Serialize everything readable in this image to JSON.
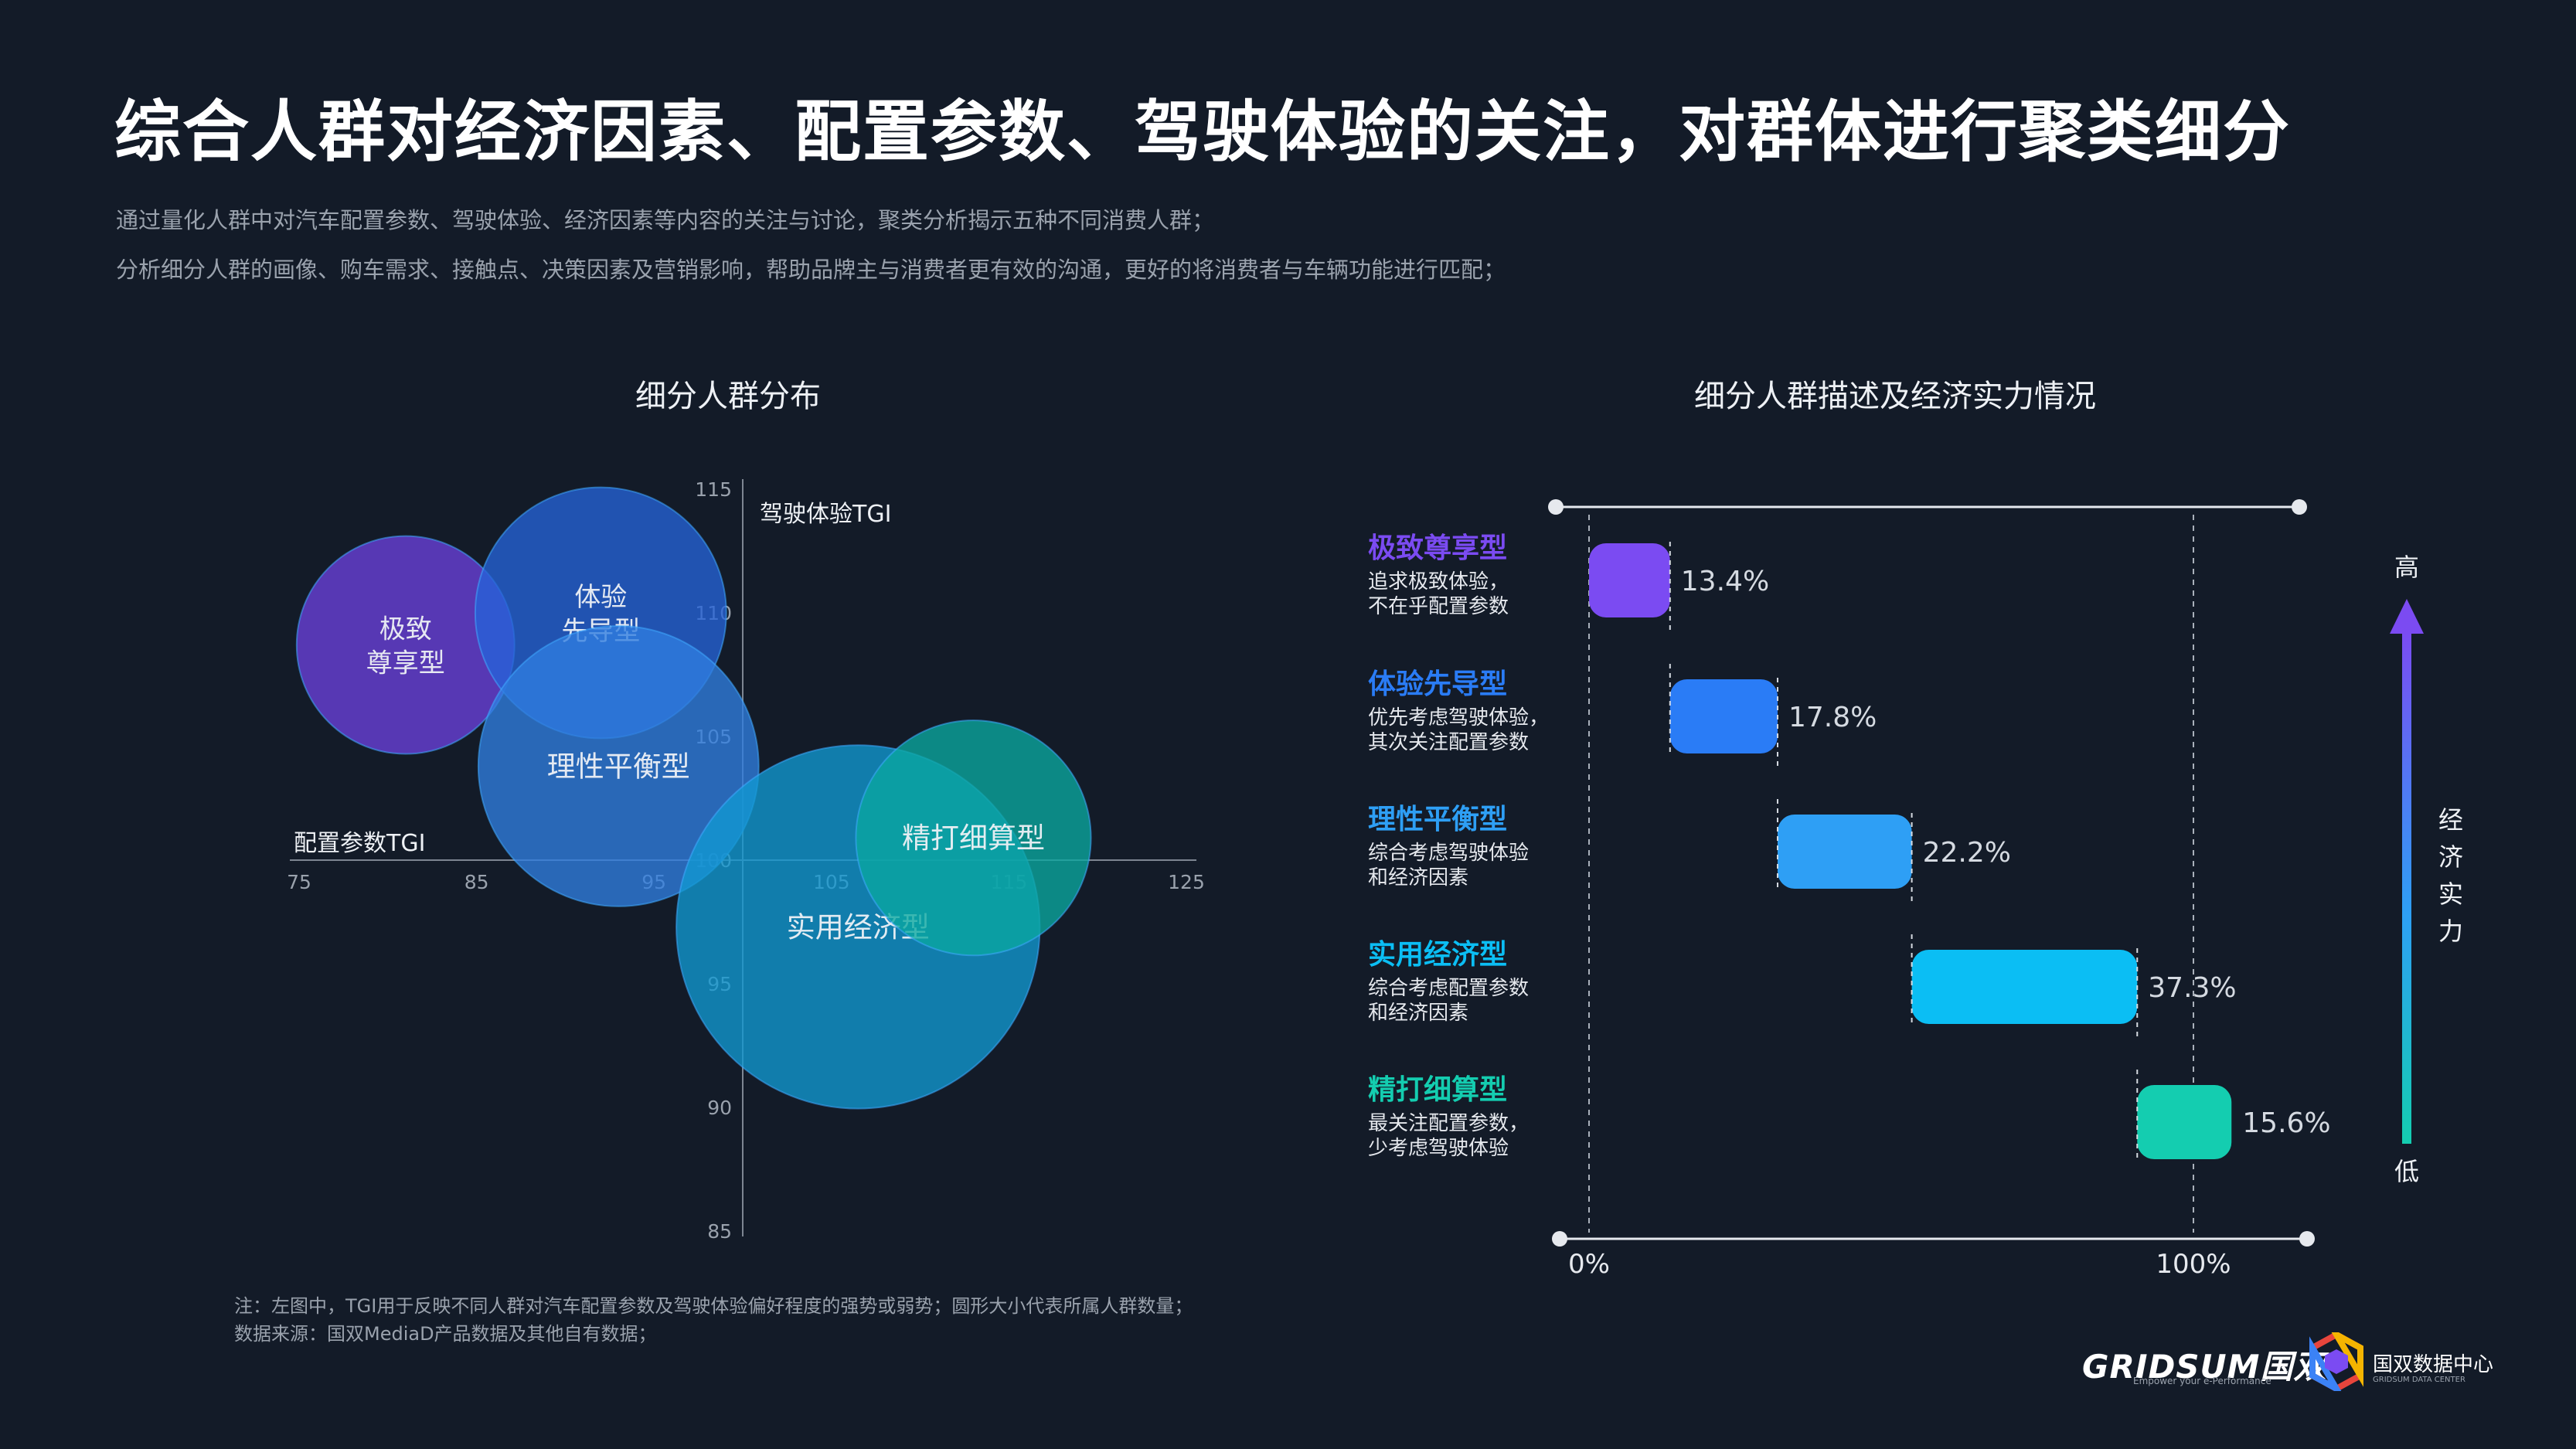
{
  "title": "综合人群对经济因素、配置参数、驾驶体验的关注，对群体进行聚类细分",
  "description": [
    "通过量化人群中对汽车配置参数、驾驶体验、经济因素等内容的关注与讨论，聚类分析揭示五种不同消费人群；",
    "分析细分人群的画像、购车需求、接触点、决策因素及营销影响，帮助品牌主与消费者更有效的沟通，更好的将消费者与车辆功能进行匹配；"
  ],
  "chart_data": [
    {
      "type": "scatter",
      "title": "细分人群分布",
      "xlabel": "配置参数TGI",
      "ylabel": "驾驶体验TGI",
      "xlim": [
        75,
        125
      ],
      "ylim": [
        85,
        115
      ],
      "x_ticks": [
        "75",
        "85",
        "95",
        "105",
        "115",
        "125"
      ],
      "y_ticks": [
        "85",
        "90",
        "95",
        "100",
        "105",
        "110",
        "115"
      ],
      "bubbles": [
        {
          "name": "极致尊享型",
          "lines": [
            "极致",
            "尊享型"
          ],
          "x": 81,
          "y": 108.7,
          "size": 13.4,
          "color": "#6a40dd"
        },
        {
          "name": "体验先导型",
          "lines": [
            "体验",
            "先导型"
          ],
          "x": 92,
          "y": 110,
          "size": 17.8,
          "color": "#2563d8"
        },
        {
          "name": "理性平衡型",
          "lines": [
            "理性平衡型"
          ],
          "x": 93,
          "y": 103.8,
          "size": 22.2,
          "color": "#2f7ee0"
        },
        {
          "name": "实用经济型",
          "lines": [
            "实用经济型"
          ],
          "x": 106.5,
          "y": 97.3,
          "size": 37.3,
          "color": "#1199d2"
        },
        {
          "name": "精打细算型",
          "lines": [
            "精打细算型"
          ],
          "x": 113,
          "y": 100.9,
          "size": 15.6,
          "color": "#0aa8a0"
        }
      ]
    },
    {
      "type": "bar",
      "title": "细分人群描述及经济实力情况",
      "x_ticks": [
        "0%",
        "100%"
      ],
      "axis_label": [
        "经",
        "济",
        "实",
        "力"
      ],
      "axis_high": "高",
      "axis_low": "低",
      "segments": [
        {
          "name": "极致尊享型",
          "desc": "追求极致体验，\n不在乎配置参数",
          "value": 13.4,
          "label": "13.4%",
          "color": "#7b4bf2"
        },
        {
          "name": "体验先导型",
          "desc": "优先考虑驾驶体验，\n其次关注配置参数",
          "value": 17.8,
          "label": "17.8%",
          "color": "#2a7cf6"
        },
        {
          "name": "理性平衡型",
          "desc": "综合考虑驾驶体验\n和经济因素",
          "value": 22.2,
          "label": "22.2%",
          "color": "#2e9ff5"
        },
        {
          "name": "实用经济型",
          "desc": "综合考虑配置参数\n和经济因素",
          "value": 37.3,
          "label": "37.3%",
          "color": "#0bbef4"
        },
        {
          "name": "精打细算型",
          "desc": "最关注配置参数，\n少考虑驾驶体验",
          "value": 15.6,
          "label": "15.6%",
          "color": "#14cdb0"
        }
      ]
    }
  ],
  "notes": [
    "注：左图中，TGI用于反映不同人群对汽车配置参数及驾驶体验偏好程度的强势或弱势；圆形大小代表所属人群数量；",
    "数据来源：国双MediaD产品数据及其他自有数据；"
  ],
  "brand": {
    "logo_text": "GRIDSUM国双",
    "tagline": "Empower your e-Performance",
    "datacenter": "国双数据中心",
    "datacenter_sub": "GRIDSUM DATA CENTER"
  }
}
